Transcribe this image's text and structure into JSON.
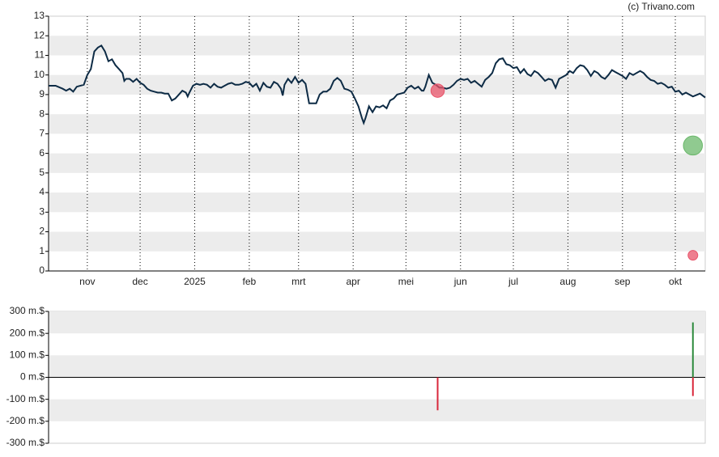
{
  "credit": "(c) Trivano.com",
  "chart_data": [
    {
      "type": "line",
      "xlim": [
        0,
        373
      ],
      "ylim": [
        0,
        13
      ],
      "yticks": [
        0,
        1,
        2,
        3,
        4,
        5,
        6,
        7,
        8,
        9,
        10,
        11,
        12,
        13
      ],
      "xticks": [
        {
          "value": 22,
          "label": "nov"
        },
        {
          "value": 52,
          "label": "dec"
        },
        {
          "value": 83,
          "label": "2025"
        },
        {
          "value": 114,
          "label": "feb"
        },
        {
          "value": 142,
          "label": "mrt"
        },
        {
          "value": 173,
          "label": "apr"
        },
        {
          "value": 203,
          "label": "mei"
        },
        {
          "value": 234,
          "label": "jun"
        },
        {
          "value": 264,
          "label": "jul"
        },
        {
          "value": 295,
          "label": "aug"
        },
        {
          "value": 326,
          "label": "sep"
        },
        {
          "value": 356,
          "label": "okt"
        }
      ],
      "grid": "bands",
      "series": [
        {
          "color": "#0d2b45",
          "x": [
            0,
            4,
            8,
            10,
            12,
            14,
            16,
            20,
            22,
            24,
            26,
            28,
            30,
            32,
            34,
            36,
            38,
            40,
            42,
            43,
            44,
            46,
            48,
            50,
            52,
            54,
            56,
            58,
            60,
            62,
            64,
            66,
            68,
            70,
            72,
            74,
            76,
            78,
            79,
            80,
            82,
            84,
            86,
            88,
            90,
            92,
            94,
            96,
            98,
            100,
            102,
            104,
            106,
            108,
            110,
            112,
            114,
            116,
            118,
            120,
            122,
            124,
            126,
            128,
            130,
            132,
            133,
            134,
            136,
            138,
            140,
            142,
            144,
            146,
            148,
            150,
            152,
            154,
            156,
            158,
            160,
            162,
            164,
            166,
            168,
            170,
            172,
            174,
            176,
            178,
            179,
            180,
            182,
            184,
            186,
            188,
            190,
            192,
            194,
            196,
            198,
            200,
            202,
            204,
            206,
            208,
            210,
            212,
            213,
            214,
            216,
            218,
            220,
            222,
            224,
            226,
            228,
            230,
            232,
            234,
            236,
            238,
            240,
            242,
            244,
            246,
            248,
            250,
            252,
            254,
            256,
            258,
            260,
            262,
            264,
            266,
            268,
            270,
            272,
            274,
            276,
            278,
            280,
            282,
            284,
            286,
            288,
            290,
            292,
            294,
            296,
            298,
            300,
            302,
            304,
            306,
            308,
            310,
            312,
            314,
            316,
            318,
            320,
            322,
            324,
            326,
            328,
            330,
            332,
            334,
            336,
            338,
            340,
            342,
            344,
            346,
            348,
            350,
            352,
            354,
            356,
            358,
            360,
            362,
            364,
            366,
            370,
            373
          ],
          "values": [
            9.45,
            9.45,
            9.3,
            9.2,
            9.3,
            9.15,
            9.4,
            9.5,
            10.0,
            10.3,
            11.2,
            11.4,
            11.5,
            11.2,
            10.7,
            10.8,
            10.5,
            10.3,
            10.1,
            9.7,
            9.8,
            9.8,
            9.65,
            9.8,
            9.6,
            9.5,
            9.3,
            9.2,
            9.15,
            9.1,
            9.1,
            9.05,
            9.05,
            8.7,
            8.8,
            9.0,
            9.2,
            9.1,
            8.9,
            9.1,
            9.45,
            9.55,
            9.5,
            9.55,
            9.5,
            9.35,
            9.55,
            9.4,
            9.35,
            9.45,
            9.55,
            9.6,
            9.5,
            9.5,
            9.55,
            9.65,
            9.6,
            9.4,
            9.55,
            9.2,
            9.6,
            9.4,
            9.35,
            9.65,
            9.55,
            9.3,
            8.95,
            9.5,
            9.8,
            9.6,
            9.9,
            9.6,
            9.75,
            9.55,
            8.55,
            8.55,
            8.55,
            9.0,
            9.15,
            9.15,
            9.3,
            9.7,
            9.85,
            9.7,
            9.3,
            9.25,
            9.15,
            8.8,
            8.4,
            7.8,
            7.55,
            7.8,
            8.4,
            8.1,
            8.4,
            8.35,
            8.45,
            8.3,
            8.7,
            8.8,
            9.0,
            9.05,
            9.1,
            9.35,
            9.45,
            9.3,
            9.4,
            9.2,
            9.2,
            9.4,
            10.0,
            9.6,
            9.5,
            9.35,
            9.35,
            9.3,
            9.35,
            9.5,
            9.7,
            9.8,
            9.75,
            9.8,
            9.6,
            9.7,
            9.55,
            9.4,
            9.75,
            9.9,
            10.1,
            10.6,
            10.8,
            10.85,
            10.55,
            10.5,
            10.35,
            10.4,
            10.1,
            10.3,
            10.05,
            9.95,
            10.2,
            10.1,
            9.9,
            9.7,
            9.8,
            9.75,
            9.35,
            9.8,
            9.9,
            10.0,
            10.2,
            10.1,
            10.35,
            10.5,
            10.45,
            10.25,
            9.95,
            10.2,
            10.1,
            9.9,
            9.8,
            10.0,
            10.25,
            10.15,
            10.05,
            9.95,
            9.8,
            10.1,
            10.0,
            10.1,
            10.2,
            10.1,
            9.9,
            9.75,
            9.7,
            9.55,
            9.6,
            9.5,
            9.35,
            9.4,
            9.15,
            9.2,
            9.0,
            9.1,
            9.0,
            8.9,
            9.05,
            8.85
          ]
        }
      ],
      "markers": {
        "x": [
          221,
          366,
          366
        ],
        "values": [
          9.2,
          6.4,
          0.8
        ],
        "colors": [
          "#e8546a",
          "#6bb86b",
          "#e8546a"
        ]
      }
    },
    {
      "type": "bar",
      "xlim": [
        0,
        373
      ],
      "ylim": [
        -300,
        300
      ],
      "yticks": [
        {
          "value": 300,
          "label": "300 m.$"
        },
        {
          "value": 200,
          "label": "200 m.$"
        },
        {
          "value": 100,
          "label": "100 m.$"
        },
        {
          "value": 0,
          "label": "0 m.$"
        },
        {
          "value": -100,
          "label": "-100 m.$"
        },
        {
          "value": -200,
          "label": "-200 m.$"
        },
        {
          "value": -300,
          "label": "-300 m.$"
        }
      ],
      "grid": "bands",
      "x": [
        221,
        366,
        366
      ],
      "values": [
        -150,
        250,
        -85
      ],
      "colors": [
        "#d9283c",
        "#2e8b3e",
        "#d9283c"
      ]
    }
  ]
}
